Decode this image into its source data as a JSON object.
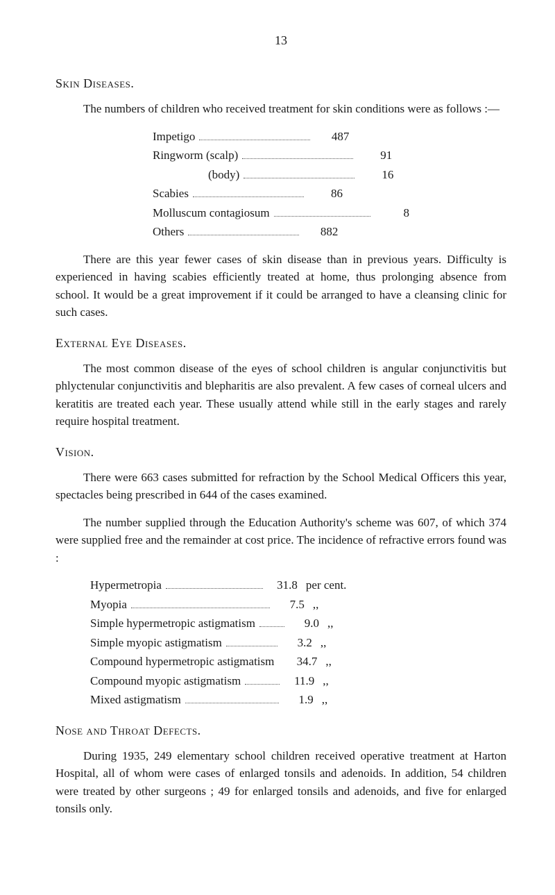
{
  "page_number": "13",
  "sections": {
    "skin": {
      "heading": "Skin Diseases.",
      "intro": "The numbers of children who received treatment for skin conditions were as follows :—",
      "stats": [
        {
          "label": "Impetigo",
          "value": "487",
          "sub": false
        },
        {
          "label": "Ringworm (scalp)",
          "value": "91",
          "sub": false
        },
        {
          "label": "(body)",
          "value": "16",
          "sub": true
        },
        {
          "label": "Scabies",
          "value": "86",
          "sub": false
        },
        {
          "label": "Molluscum contagiosum",
          "value": "8",
          "sub": false
        },
        {
          "label": "Others",
          "value": "882",
          "sub": false
        }
      ],
      "para2": "There are this year fewer cases of skin disease than in previous years. Difficulty is experienced in having scabies efficiently treated at home, thus prolonging absence from school. It would be a great improvement if it could be arranged to have a cleansing clinic for such cases."
    },
    "eye": {
      "heading": "External Eye Diseases.",
      "para": "The most common disease of the eyes of school children is angular conjunctivitis but phlyctenular conjunctivitis and blepharitis are also prevalent. A few cases of corneal ulcers and keratitis are treated each year. These usually attend while still in the early stages and rarely require hospital treatment."
    },
    "vision": {
      "heading": "Vision.",
      "para1": "There were 663 cases submitted for refraction by the School Medical Officers this year, spectacles being prescribed in 644 of the cases examined.",
      "para2": "The number supplied through the Education Authority's scheme was 607, of which 374 were supplied free and the remainder at cost price. The incidence of refractive errors found was :",
      "stats": [
        {
          "label": "Hypermetropia",
          "value": "31.8",
          "unit": "per cent.",
          "dots": "w1"
        },
        {
          "label": "Myopia",
          "value": "7.5",
          "unit": ",,",
          "dots": "w2"
        },
        {
          "label": "Simple hypermetropic astigmatism",
          "value": "9.0",
          "unit": ",,",
          "dots": "w3"
        },
        {
          "label": "Simple myopic astigmatism",
          "value": "3.2",
          "unit": ",,",
          "dots": "w4"
        },
        {
          "label": "Compound hypermetropic astigmatism",
          "value": "34.7",
          "unit": ",,",
          "dots": ""
        },
        {
          "label": "Compound myopic astigmatism",
          "value": "11.9",
          "unit": ",,",
          "dots": "w5"
        },
        {
          "label": "Mixed astigmatism",
          "value": "1.9",
          "unit": ",,",
          "dots": "w6"
        }
      ]
    },
    "nose": {
      "heading": "Nose and Throat Defects.",
      "para": "During 1935, 249 elementary school children received operative treatment at Harton Hospital, all of whom were cases of enlarged tonsils and adenoids. In addition, 54 children were treated by other surgeons ; 49 for enlarged tonsils and adenoids, and five for enlarged tonsils only."
    }
  }
}
